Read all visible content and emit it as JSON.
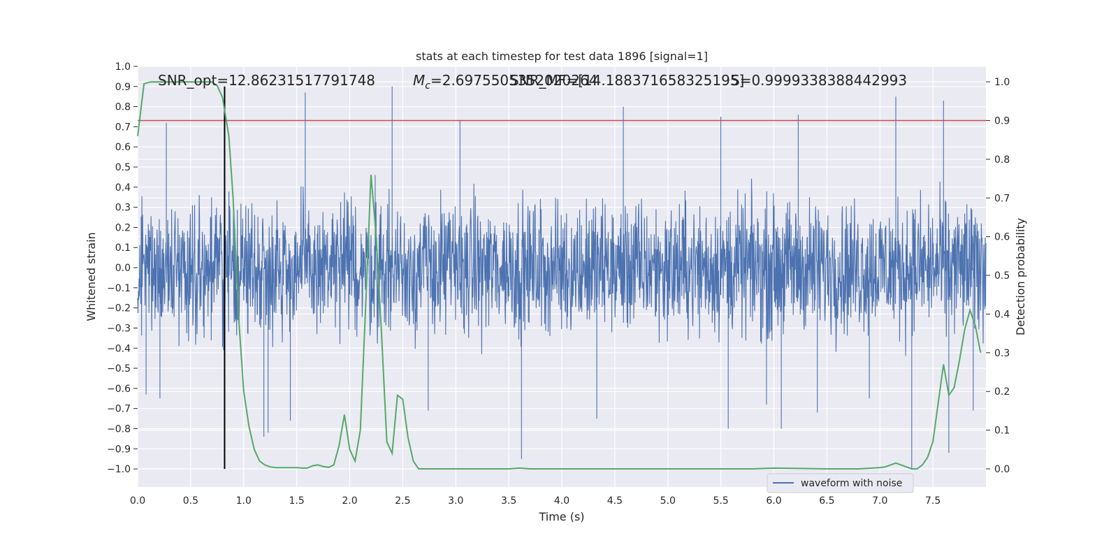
{
  "chart_data": {
    "type": "line",
    "title": "stats at each timestep for test data 1896 [signal=1]",
    "xlabel": "Time (s)",
    "ylabel": "Whitened strain",
    "ylabel_right": "Detection probability",
    "xlim": [
      0.0,
      8.0
    ],
    "ylim": [
      -1.09,
      1.0
    ],
    "ylim_right": [
      -0.047,
      1.04
    ],
    "x_ticks": [
      "0.0",
      "0.5",
      "1.0",
      "1.5",
      "2.0",
      "2.5",
      "3.0",
      "3.5",
      "4.0",
      "4.5",
      "5.0",
      "5.5",
      "6.0",
      "6.5",
      "7.0",
      "7.5"
    ],
    "y_ticks": [
      "1.0",
      "0.9",
      "0.8",
      "0.7",
      "0.6",
      "0.5",
      "0.4",
      "0.3",
      "0.2",
      "0.1",
      "0.0",
      "-0.1",
      "-0.2",
      "-0.3",
      "-0.4",
      "-0.5",
      "-0.6",
      "-0.7",
      "-0.8",
      "-0.9",
      "-1.0"
    ],
    "y_ticks_right": [
      "1.0",
      "0.9",
      "0.8",
      "0.7",
      "0.6",
      "0.5",
      "0.4",
      "0.3",
      "0.2",
      "0.1",
      "0.0"
    ],
    "annotations": [
      "SNR_opt=12.86231517791748",
      "M",
      "c",
      "=2.6975505352020264",
      "SNR_MF=[14.188371658325195]",
      "S=0.9999338388442993"
    ],
    "legend": {
      "entries": [
        "waveform with noise"
      ],
      "placement": "lower-right"
    },
    "grid": true,
    "threshold_line": {
      "y_right": 0.9,
      "color": "#c44e52"
    },
    "marker_line": {
      "x": 0.82,
      "color": "#000000"
    },
    "series": [
      {
        "name": "waveform with noise",
        "axis": "left",
        "color": "#4c72b0",
        "style": "dense noisy strain, typical range about -0.45 to 0.45 with spikes",
        "spikes": [
          [
            0.27,
            0.72
          ],
          [
            0.08,
            -0.63
          ],
          [
            0.21,
            -0.65
          ],
          [
            1.58,
            0.87
          ],
          [
            1.19,
            -0.84
          ],
          [
            1.23,
            -0.82
          ],
          [
            1.44,
            -0.76
          ],
          [
            2.4,
            0.9
          ],
          [
            2.24,
            0.46
          ],
          [
            3.04,
            0.73
          ],
          [
            2.74,
            -0.71
          ],
          [
            3.62,
            -0.95
          ],
          [
            4.58,
            0.8
          ],
          [
            4.33,
            -0.75
          ],
          [
            5.5,
            0.75
          ],
          [
            5.57,
            -0.8
          ],
          [
            6.07,
            -0.8
          ],
          [
            6.23,
            0.76
          ],
          [
            6.41,
            -0.72
          ],
          [
            7.15,
            0.85
          ],
          [
            7.6,
            0.83
          ],
          [
            7.3,
            -1.0
          ],
          [
            7.65,
            -0.92
          ],
          [
            7.88,
            -0.71
          ],
          [
            5.93,
            -0.68
          ],
          [
            6.9,
            -0.65
          ]
        ]
      },
      {
        "name": "detection probability",
        "axis": "right",
        "color": "#55a868",
        "x": [
          0.0,
          0.06,
          0.12,
          0.2,
          0.3,
          0.4,
          0.5,
          0.6,
          0.7,
          0.75,
          0.8,
          0.86,
          0.9,
          0.95,
          1.0,
          1.05,
          1.1,
          1.15,
          1.2,
          1.25,
          1.3,
          1.4,
          1.5,
          1.55,
          1.6,
          1.65,
          1.7,
          1.75,
          1.8,
          1.85,
          1.9,
          1.95,
          2.0,
          2.05,
          2.1,
          2.15,
          2.2,
          2.25,
          2.3,
          2.35,
          2.4,
          2.45,
          2.5,
          2.55,
          2.6,
          2.65,
          2.7,
          2.8,
          2.9,
          3.0,
          3.2,
          3.4,
          3.5,
          3.6,
          3.7,
          3.8,
          4.0,
          4.2,
          4.4,
          4.6,
          5.0,
          5.4,
          5.8,
          6.0,
          6.5,
          6.8,
          7.0,
          7.05,
          7.1,
          7.15,
          7.2,
          7.25,
          7.3,
          7.35,
          7.4,
          7.45,
          7.5,
          7.55,
          7.6,
          7.65,
          7.7,
          7.75,
          7.8,
          7.85,
          7.9,
          7.95
        ],
        "y": [
          0.86,
          0.995,
          1.0,
          1.0,
          1.0,
          1.0,
          1.0,
          1.0,
          1.0,
          0.99,
          0.96,
          0.86,
          0.7,
          0.4,
          0.2,
          0.11,
          0.05,
          0.02,
          0.01,
          0.005,
          0.003,
          0.003,
          0.003,
          0.002,
          0.002,
          0.008,
          0.01,
          0.006,
          0.004,
          0.01,
          0.06,
          0.14,
          0.05,
          0.02,
          0.1,
          0.42,
          0.76,
          0.6,
          0.35,
          0.07,
          0.04,
          0.19,
          0.18,
          0.08,
          0.02,
          0.0,
          0.0,
          0.0,
          0.0,
          0.0,
          0.0,
          0.0,
          0.0,
          0.002,
          0.0,
          0.0,
          0.0,
          0.0,
          0.0,
          0.0,
          0.0,
          0.0,
          0.0,
          0.002,
          0.0,
          0.0,
          0.003,
          0.005,
          0.01,
          0.015,
          0.01,
          0.005,
          0.0,
          0.0,
          0.01,
          0.03,
          0.07,
          0.17,
          0.27,
          0.19,
          0.21,
          0.28,
          0.36,
          0.41,
          0.37,
          0.3
        ]
      }
    ]
  }
}
